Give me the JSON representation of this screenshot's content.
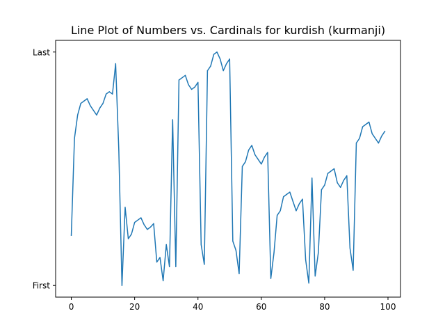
{
  "chart_data": {
    "type": "line",
    "title": "Line Plot of Numbers vs. Cardinals for kurdish (kurmanji)",
    "xlabel": "",
    "ylabel": "",
    "xlim": [
      -4.95,
      103.95
    ],
    "ylim": [
      -0.05,
      1.05
    ],
    "xticks": [
      0,
      20,
      40,
      60,
      80,
      100
    ],
    "yticks": [
      {
        "value": 0,
        "label": "First"
      },
      {
        "value": 1,
        "label": "Last"
      }
    ],
    "grid": false,
    "series": [
      {
        "color": "#1f77b4",
        "x": [
          0,
          1,
          2,
          3,
          4,
          5,
          6,
          7,
          8,
          9,
          10,
          11,
          12,
          13,
          14,
          15,
          16,
          17,
          18,
          19,
          20,
          21,
          22,
          23,
          24,
          25,
          26,
          27,
          28,
          29,
          30,
          31,
          32,
          33,
          34,
          35,
          36,
          37,
          38,
          39,
          40,
          41,
          42,
          43,
          44,
          45,
          46,
          47,
          48,
          49,
          50,
          51,
          52,
          53,
          54,
          55,
          56,
          57,
          58,
          59,
          60,
          61,
          62,
          63,
          64,
          65,
          66,
          67,
          68,
          69,
          70,
          71,
          72,
          73,
          74,
          75,
          76,
          77,
          78,
          79,
          80,
          81,
          82,
          83,
          84,
          85,
          86,
          87,
          88,
          89,
          90,
          91,
          92,
          93,
          94,
          95,
          96,
          97,
          98,
          99
        ],
        "y": [
          0.215,
          0.63,
          0.73,
          0.78,
          0.79,
          0.8,
          0.77,
          0.75,
          0.73,
          0.76,
          0.78,
          0.82,
          0.83,
          0.82,
          0.95,
          0.58,
          0.0,
          0.335,
          0.2,
          0.22,
          0.27,
          0.28,
          0.29,
          0.26,
          0.24,
          0.25,
          0.265,
          0.1,
          0.12,
          0.02,
          0.175,
          0.08,
          0.71,
          0.08,
          0.88,
          0.89,
          0.9,
          0.86,
          0.84,
          0.85,
          0.87,
          0.175,
          0.09,
          0.92,
          0.94,
          0.99,
          1.0,
          0.97,
          0.92,
          0.95,
          0.97,
          0.19,
          0.15,
          0.05,
          0.51,
          0.53,
          0.58,
          0.6,
          0.56,
          0.54,
          0.52,
          0.55,
          0.57,
          0.03,
          0.14,
          0.3,
          0.32,
          0.38,
          0.39,
          0.4,
          0.36,
          0.32,
          0.35,
          0.37,
          0.11,
          0.01,
          0.46,
          0.04,
          0.14,
          0.41,
          0.43,
          0.48,
          0.49,
          0.5,
          0.44,
          0.42,
          0.45,
          0.47,
          0.16,
          0.065,
          0.61,
          0.63,
          0.68,
          0.69,
          0.7,
          0.65,
          0.63,
          0.61,
          0.64,
          0.66
        ]
      }
    ]
  }
}
